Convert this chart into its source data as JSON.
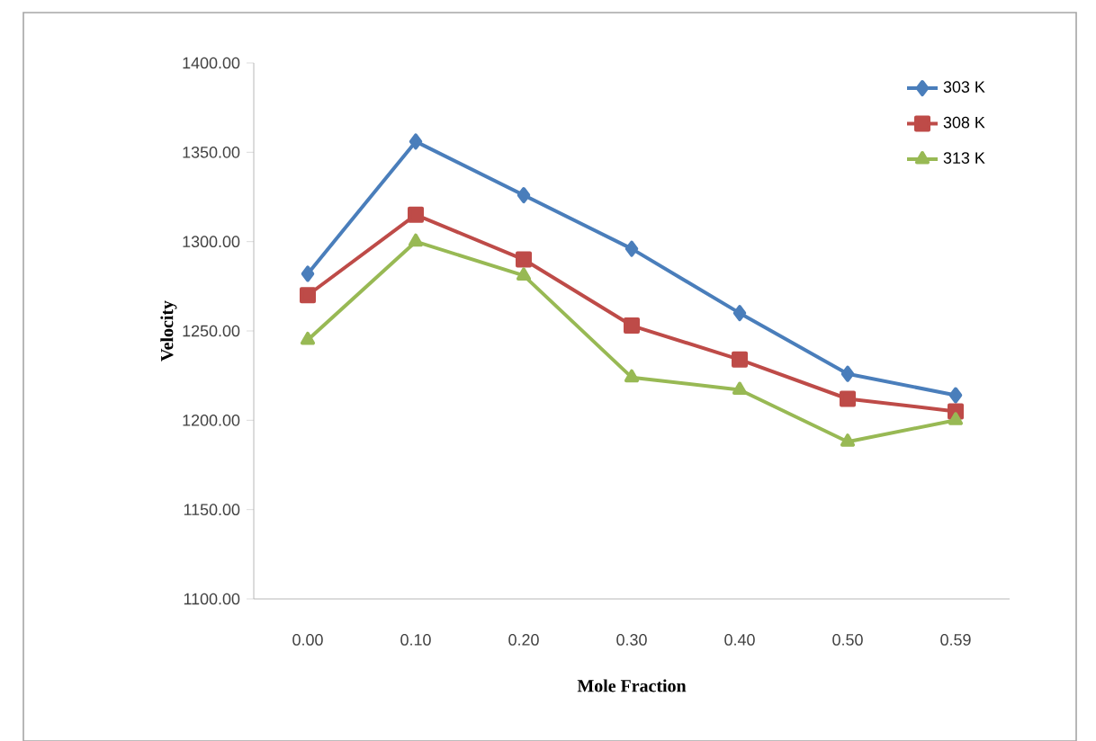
{
  "chart_data": {
    "type": "line",
    "xlabel": "Mole Fraction",
    "ylabel": "Velocity",
    "categories": [
      "0.00",
      "0.10",
      "0.20",
      "0.30",
      "0.40",
      "0.50",
      "0.59"
    ],
    "series": [
      {
        "name": "303 K",
        "color": "#4a7ebb",
        "marker": "diamond",
        "values": [
          1282,
          1356,
          1326,
          1296,
          1260,
          1226,
          1214
        ]
      },
      {
        "name": "308 K",
        "color": "#be4b48",
        "marker": "square",
        "values": [
          1270,
          1315,
          1290,
          1253,
          1234,
          1212,
          1205
        ]
      },
      {
        "name": "313 K",
        "color": "#98b954",
        "marker": "triangle",
        "values": [
          1245,
          1300,
          1281,
          1224,
          1217,
          1188,
          1200
        ]
      }
    ],
    "ylim": [
      1100,
      1400
    ],
    "yticks": [
      {
        "value": 1100,
        "label": "1100.00"
      },
      {
        "value": 1150,
        "label": "1150.00"
      },
      {
        "value": 1200,
        "label": "1200.00"
      },
      {
        "value": 1250,
        "label": "1250.00"
      },
      {
        "value": 1300,
        "label": "1300.00"
      },
      {
        "value": 1350,
        "label": "1350.00"
      },
      {
        "value": 1400,
        "label": "1400.00"
      }
    ],
    "grid": false,
    "legend": "top right",
    "line_style": "solid"
  }
}
